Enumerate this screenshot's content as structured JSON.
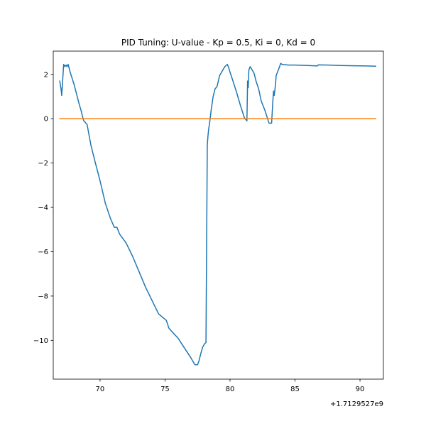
{
  "chart_data": {
    "type": "line",
    "title": "PID Tuning: U-value - Kp = 0.5, Ki = 0, Kd = 0",
    "xlabel": "",
    "ylabel": "",
    "x_offset_label": "+1.7129527e9",
    "xlim": [
      66.4,
      91.8
    ],
    "ylim": [
      -11.75,
      3.05
    ],
    "x_ticks": [
      70,
      75,
      80,
      85,
      90
    ],
    "x_tick_labels": [
      "70",
      "75",
      "80",
      "85",
      "90"
    ],
    "y_ticks": [
      2,
      0,
      -2,
      -4,
      -6,
      -8,
      -10
    ],
    "y_tick_labels": [
      "2",
      "0",
      "−2",
      "−4",
      "−6",
      "−8",
      "−10"
    ],
    "grid": false,
    "series": [
      {
        "color": "#1f77b4",
        "x": [
          66.9,
          67.0,
          67.05,
          67.1,
          67.2,
          67.3,
          67.35,
          67.4,
          67.45,
          67.55,
          67.7,
          68.0,
          68.2,
          68.4,
          68.55,
          68.65,
          68.75,
          68.85,
          68.9,
          69.0,
          69.3,
          69.6,
          70.0,
          70.4,
          70.8,
          71.1,
          71.3,
          71.5,
          72.0,
          72.5,
          73.0,
          73.5,
          74.0,
          74.5,
          75.0,
          75.1,
          75.3,
          75.6,
          76.0,
          76.5,
          77.0,
          77.3,
          77.5,
          77.6,
          77.75,
          77.9,
          78.05,
          78.15,
          78.25,
          78.3,
          78.35,
          78.45,
          78.55,
          78.7,
          78.85,
          79.0,
          79.2,
          79.4,
          79.6,
          79.8,
          79.9,
          80.0,
          80.2,
          80.5,
          80.8,
          81.1,
          81.3,
          81.35,
          81.4,
          81.45,
          81.55,
          81.6,
          81.7,
          81.85,
          82.0,
          82.2,
          82.4,
          82.7,
          83.0,
          83.2,
          83.3,
          83.35,
          83.4,
          83.5,
          83.55,
          83.65,
          83.75,
          83.9,
          84.0,
          84.5,
          85.0,
          86.0,
          86.7,
          86.8,
          87.5,
          88.5,
          89.5,
          90.5,
          91.2
        ],
        "y": [
          1.7,
          1.35,
          1.05,
          1.5,
          2.45,
          2.35,
          2.4,
          2.42,
          2.35,
          2.45,
          2.1,
          1.55,
          1.1,
          0.65,
          0.35,
          0.1,
          -0.1,
          -0.15,
          -0.2,
          -0.25,
          -1.2,
          -1.9,
          -2.8,
          -3.8,
          -4.5,
          -4.9,
          -4.9,
          -5.2,
          -5.6,
          -6.2,
          -6.9,
          -7.6,
          -8.2,
          -8.8,
          -9.05,
          -9.1,
          -9.45,
          -9.65,
          -9.9,
          -10.35,
          -10.8,
          -11.1,
          -11.1,
          -10.95,
          -10.6,
          -10.3,
          -10.15,
          -10.1,
          -1.2,
          -0.8,
          -0.5,
          -0.1,
          0.4,
          1.0,
          1.35,
          1.45,
          1.95,
          2.15,
          2.35,
          2.45,
          2.3,
          2.1,
          1.75,
          1.2,
          0.6,
          0.05,
          -0.1,
          1.7,
          1.4,
          2.2,
          2.35,
          2.3,
          2.2,
          2.05,
          1.7,
          1.35,
          0.8,
          0.35,
          -0.2,
          -0.2,
          0.85,
          1.25,
          1.05,
          1.55,
          1.95,
          2.1,
          2.25,
          2.5,
          2.45,
          2.42,
          2.42,
          2.4,
          2.38,
          2.43,
          2.42,
          2.4,
          2.39,
          2.38,
          2.37
        ]
      },
      {
        "color": "#ff7f0e",
        "x": [
          66.9,
          91.2
        ],
        "y": [
          0,
          0
        ]
      }
    ]
  }
}
